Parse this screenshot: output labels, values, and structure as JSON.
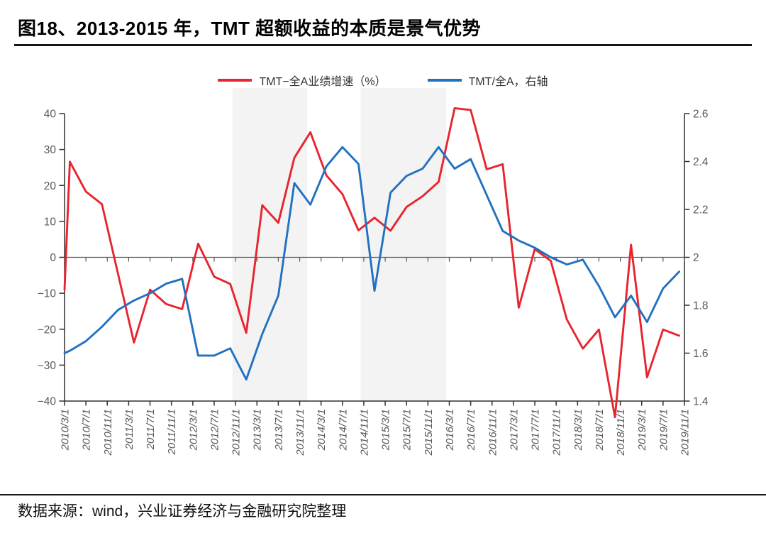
{
  "title": "图18、2013-2015 年，TMT 超额收益的本质是景气优势",
  "footer": {
    "source_note": "数据来源：wind，兴业证券经济与金融研究院整理"
  },
  "legend": {
    "items": [
      {
        "label": "TMT−全A业绩增速（%）",
        "series": "tmt_minus_quanA_growth"
      },
      {
        "label": "TMT/全A，右轴",
        "series": "tmt_over_quanA"
      }
    ]
  },
  "chart_data": {
    "type": "line",
    "title": "",
    "xlabel": "",
    "ylabel_left": "",
    "ylabel_right": "",
    "left_axis": {
      "min": -40,
      "max": 40,
      "tick_labels": [
        "40",
        "30",
        "20",
        "10",
        "0",
        "−10",
        "−20",
        "−30",
        "−40"
      ],
      "tick_values": [
        40,
        30,
        20,
        10,
        0,
        -10,
        -20,
        -30,
        -40
      ]
    },
    "right_axis": {
      "min": 1.4,
      "max": 2.6,
      "tick_labels": [
        "2.6",
        "2.4",
        "2.2",
        "2",
        "1.8",
        "1.6",
        "1.4"
      ],
      "tick_values": [
        2.6,
        2.4,
        2.2,
        2.0,
        1.8,
        1.6,
        1.4
      ]
    },
    "x_tick_labels": [
      "2010/3/1",
      "2010/7/1",
      "2010/11/1",
      "2011/3/1",
      "2011/7/1",
      "2011/11/1",
      "2012/3/1",
      "2012/7/1",
      "2012/11/1",
      "2013/3/1",
      "2013/7/1",
      "2013/11/1",
      "2014/3/1",
      "2014/7/1",
      "2014/11/1",
      "2015/3/1",
      "2015/7/1",
      "2015/11/1",
      "2016/3/1",
      "2016/7/1",
      "2016/11/1",
      "2017/3/1",
      "2017/7/1",
      "2017/11/1",
      "2018/3/1",
      "2018/7/1",
      "2018/11/1",
      "2019/3/1",
      "2019/7/1",
      "2019/11/1"
    ],
    "x_tick_month_step": 4,
    "quarters": [
      "2010Q1",
      "2010Q2",
      "2010Q3",
      "2010Q4",
      "2011Q1",
      "2011Q2",
      "2011Q3",
      "2011Q4",
      "2012Q1",
      "2012Q2",
      "2012Q3",
      "2012Q4",
      "2013Q1",
      "2013Q2",
      "2013Q3",
      "2013Q4",
      "2014Q1",
      "2014Q2",
      "2014Q3",
      "2014Q4",
      "2015Q1",
      "2015Q2",
      "2015Q3",
      "2015Q4",
      "2016Q1",
      "2016Q2",
      "2016Q3",
      "2016Q4",
      "2017Q1",
      "2017Q2",
      "2017Q3",
      "2017Q4",
      "2018Q1",
      "2018Q2",
      "2018Q3",
      "2018Q4",
      "2019Q1",
      "2019Q2",
      "2019Q3"
    ],
    "series": [
      {
        "name": "TMT−全A业绩增速（%）",
        "axis": "left",
        "color": "#e8242f",
        "lead_in_value": -9,
        "values": [
          26.6,
          18.3,
          14.8,
          -4.5,
          -23.7,
          -9,
          -13,
          -14.4,
          3.8,
          -5.4,
          -7.4,
          -21,
          14.5,
          9.6,
          27.7,
          34.8,
          22.8,
          17.6,
          7.5,
          11,
          7.4,
          14,
          17,
          21,
          41.5,
          41,
          24.5,
          25.9,
          -14,
          2.3,
          -1,
          -17.3,
          -25.4,
          -20.1,
          -44.5,
          3.5,
          -33.4,
          -20.1,
          -21.8
        ]
      },
      {
        "name": "TMT/全A，右轴",
        "axis": "right",
        "color": "#2271c0",
        "lead_in_value": 1.6,
        "values": [
          1.61,
          1.65,
          1.71,
          1.78,
          1.82,
          1.85,
          1.89,
          1.91,
          1.59,
          1.59,
          1.62,
          1.49,
          1.68,
          1.84,
          2.31,
          2.22,
          2.38,
          2.46,
          2.39,
          1.86,
          2.27,
          2.34,
          2.37,
          2.46,
          2.37,
          2.41,
          2.26,
          2.11,
          2.07,
          2.04,
          2.0,
          1.97,
          1.99,
          1.88,
          1.75,
          1.84,
          1.73,
          1.87,
          1.94
        ]
      }
    ],
    "highlight_bands": [
      {
        "label": "2012/11−2013/11",
        "from_month": 31.4,
        "to_month": 45.4,
        "color": "#f3f3f3"
      },
      {
        "label": "2014/11−2016/3",
        "from_month": 55.4,
        "to_month": 71.4,
        "color": "#f3f3f3"
      }
    ],
    "grid": false,
    "legend_position": "top",
    "axis_color": "#303030",
    "zero_line_color": "#595959",
    "tick_label_color": "#595959"
  }
}
